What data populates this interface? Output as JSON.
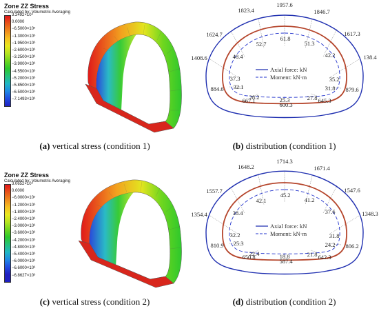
{
  "panels": [
    {
      "id": "a",
      "legend": {
        "title": "Zone ZZ Stress",
        "subtitle": "Calculated by: Volumetric Averaging",
        "labels": [
          "3.2492×10⁴",
          "0.0000",
          "−6.5000×10⁵",
          "−1.3000×10⁶",
          "−1.9500×10⁶",
          "−2.6000×10⁶",
          "−3.2500×10⁶",
          "−3.9000×10⁶",
          "−4.5500×10⁶",
          "−5.2000×10⁶",
          "−5.8500×10⁶",
          "−6.5000×10⁶",
          "−7.1493×10⁶"
        ],
        "colors": [
          "#e3171b",
          "#e8541a",
          "#ef8a1e",
          "#f6c021",
          "#e9e81f",
          "#b6e41f",
          "#6fd61f",
          "#2dc82c",
          "#25c17a",
          "#1fb7c3",
          "#1f89e4",
          "#1f4be0",
          "#1f20c0"
        ]
      },
      "caption": {
        "letter": "(a)",
        "text": " vertical stress (condition 1)"
      }
    },
    {
      "id": "b",
      "legend_items": [
        "Axial force: kN",
        "Moment: kN·m"
      ],
      "axial_force": [
        {
          "v": "1957.6"
        },
        {
          "v": "1846.7"
        },
        {
          "v": "1617.3"
        },
        {
          "v": "138.4"
        },
        {
          "v": "879.6"
        },
        {
          "v": "645.3"
        },
        {
          "v": "600.3"
        },
        {
          "v": "667.1"
        },
        {
          "v": "884.6"
        },
        {
          "v": "1408.6"
        },
        {
          "v": "1624.7"
        },
        {
          "v": "1823.4"
        }
      ],
      "moment": [
        {
          "v": "61.8"
        },
        {
          "v": "51.3"
        },
        {
          "v": "42.2"
        },
        {
          "v": "35.2"
        },
        {
          "v": "31.8"
        },
        {
          "v": "27.8"
        },
        {
          "v": "25.3"
        },
        {
          "v": "28.2"
        },
        {
          "v": "32.1"
        },
        {
          "v": "37.3"
        },
        {
          "v": "48.4"
        },
        {
          "v": "52.7"
        }
      ],
      "caption": {
        "letter": "(b)",
        "text": " distribution (condition 1)"
      }
    },
    {
      "id": "c",
      "legend": {
        "title": "Zone ZZ Stress",
        "subtitle": "Calculated by: Volumetric Averaging",
        "labels": [
          "3.0652×10⁴",
          "0.0000",
          "−6.0000×10⁵",
          "−1.2000×10⁶",
          "−1.8000×10⁶",
          "−2.4000×10⁶",
          "−3.0000×10⁶",
          "−3.6000×10⁶",
          "−4.2000×10⁶",
          "−4.8000×10⁶",
          "−5.4000×10⁶",
          "−6.0000×10⁶",
          "−6.6000×10⁶",
          "−6.8627×10⁶"
        ],
        "colors": [
          "#e3171b",
          "#e8541a",
          "#ef8a1e",
          "#f6c021",
          "#e9e81f",
          "#b6e41f",
          "#6fd61f",
          "#2dc82c",
          "#25c17a",
          "#1fb7c3",
          "#1f89e4",
          "#1f4be0",
          "#1f20c0",
          "#1f20c0"
        ]
      },
      "caption": {
        "letter": "(c)",
        "text": " vertical stress (condition 2)"
      }
    },
    {
      "id": "d",
      "legend_items": [
        "Axial force: kN",
        "Moment: kN·m"
      ],
      "axial_force": [
        {
          "v": "1714.3"
        },
        {
          "v": "1671.4"
        },
        {
          "v": "1547.6"
        },
        {
          "v": "1348.3"
        },
        {
          "v": "806.2"
        },
        {
          "v": "642.3"
        },
        {
          "v": "587.4"
        },
        {
          "v": "650.8"
        },
        {
          "v": "810.9"
        },
        {
          "v": "1354.4"
        },
        {
          "v": "1557.7"
        },
        {
          "v": "1648.2"
        }
      ],
      "moment": [
        {
          "v": "45.2"
        },
        {
          "v": "41.2"
        },
        {
          "v": "37.6"
        },
        {
          "v": "31.8"
        },
        {
          "v": "24.2"
        },
        {
          "v": "21.8"
        },
        {
          "v": "18.8"
        },
        {
          "v": "22.4"
        },
        {
          "v": "25.3"
        },
        {
          "v": "32.2"
        },
        {
          "v": "38.4"
        },
        {
          "v": "42.1"
        }
      ],
      "caption": {
        "letter": "(d)",
        "text": " distribution (condition 2)"
      }
    }
  ],
  "colors": {
    "axial": "#1f2fb0",
    "lining": "#b5452b",
    "moment": "#2233cc",
    "leader": "#555555"
  }
}
